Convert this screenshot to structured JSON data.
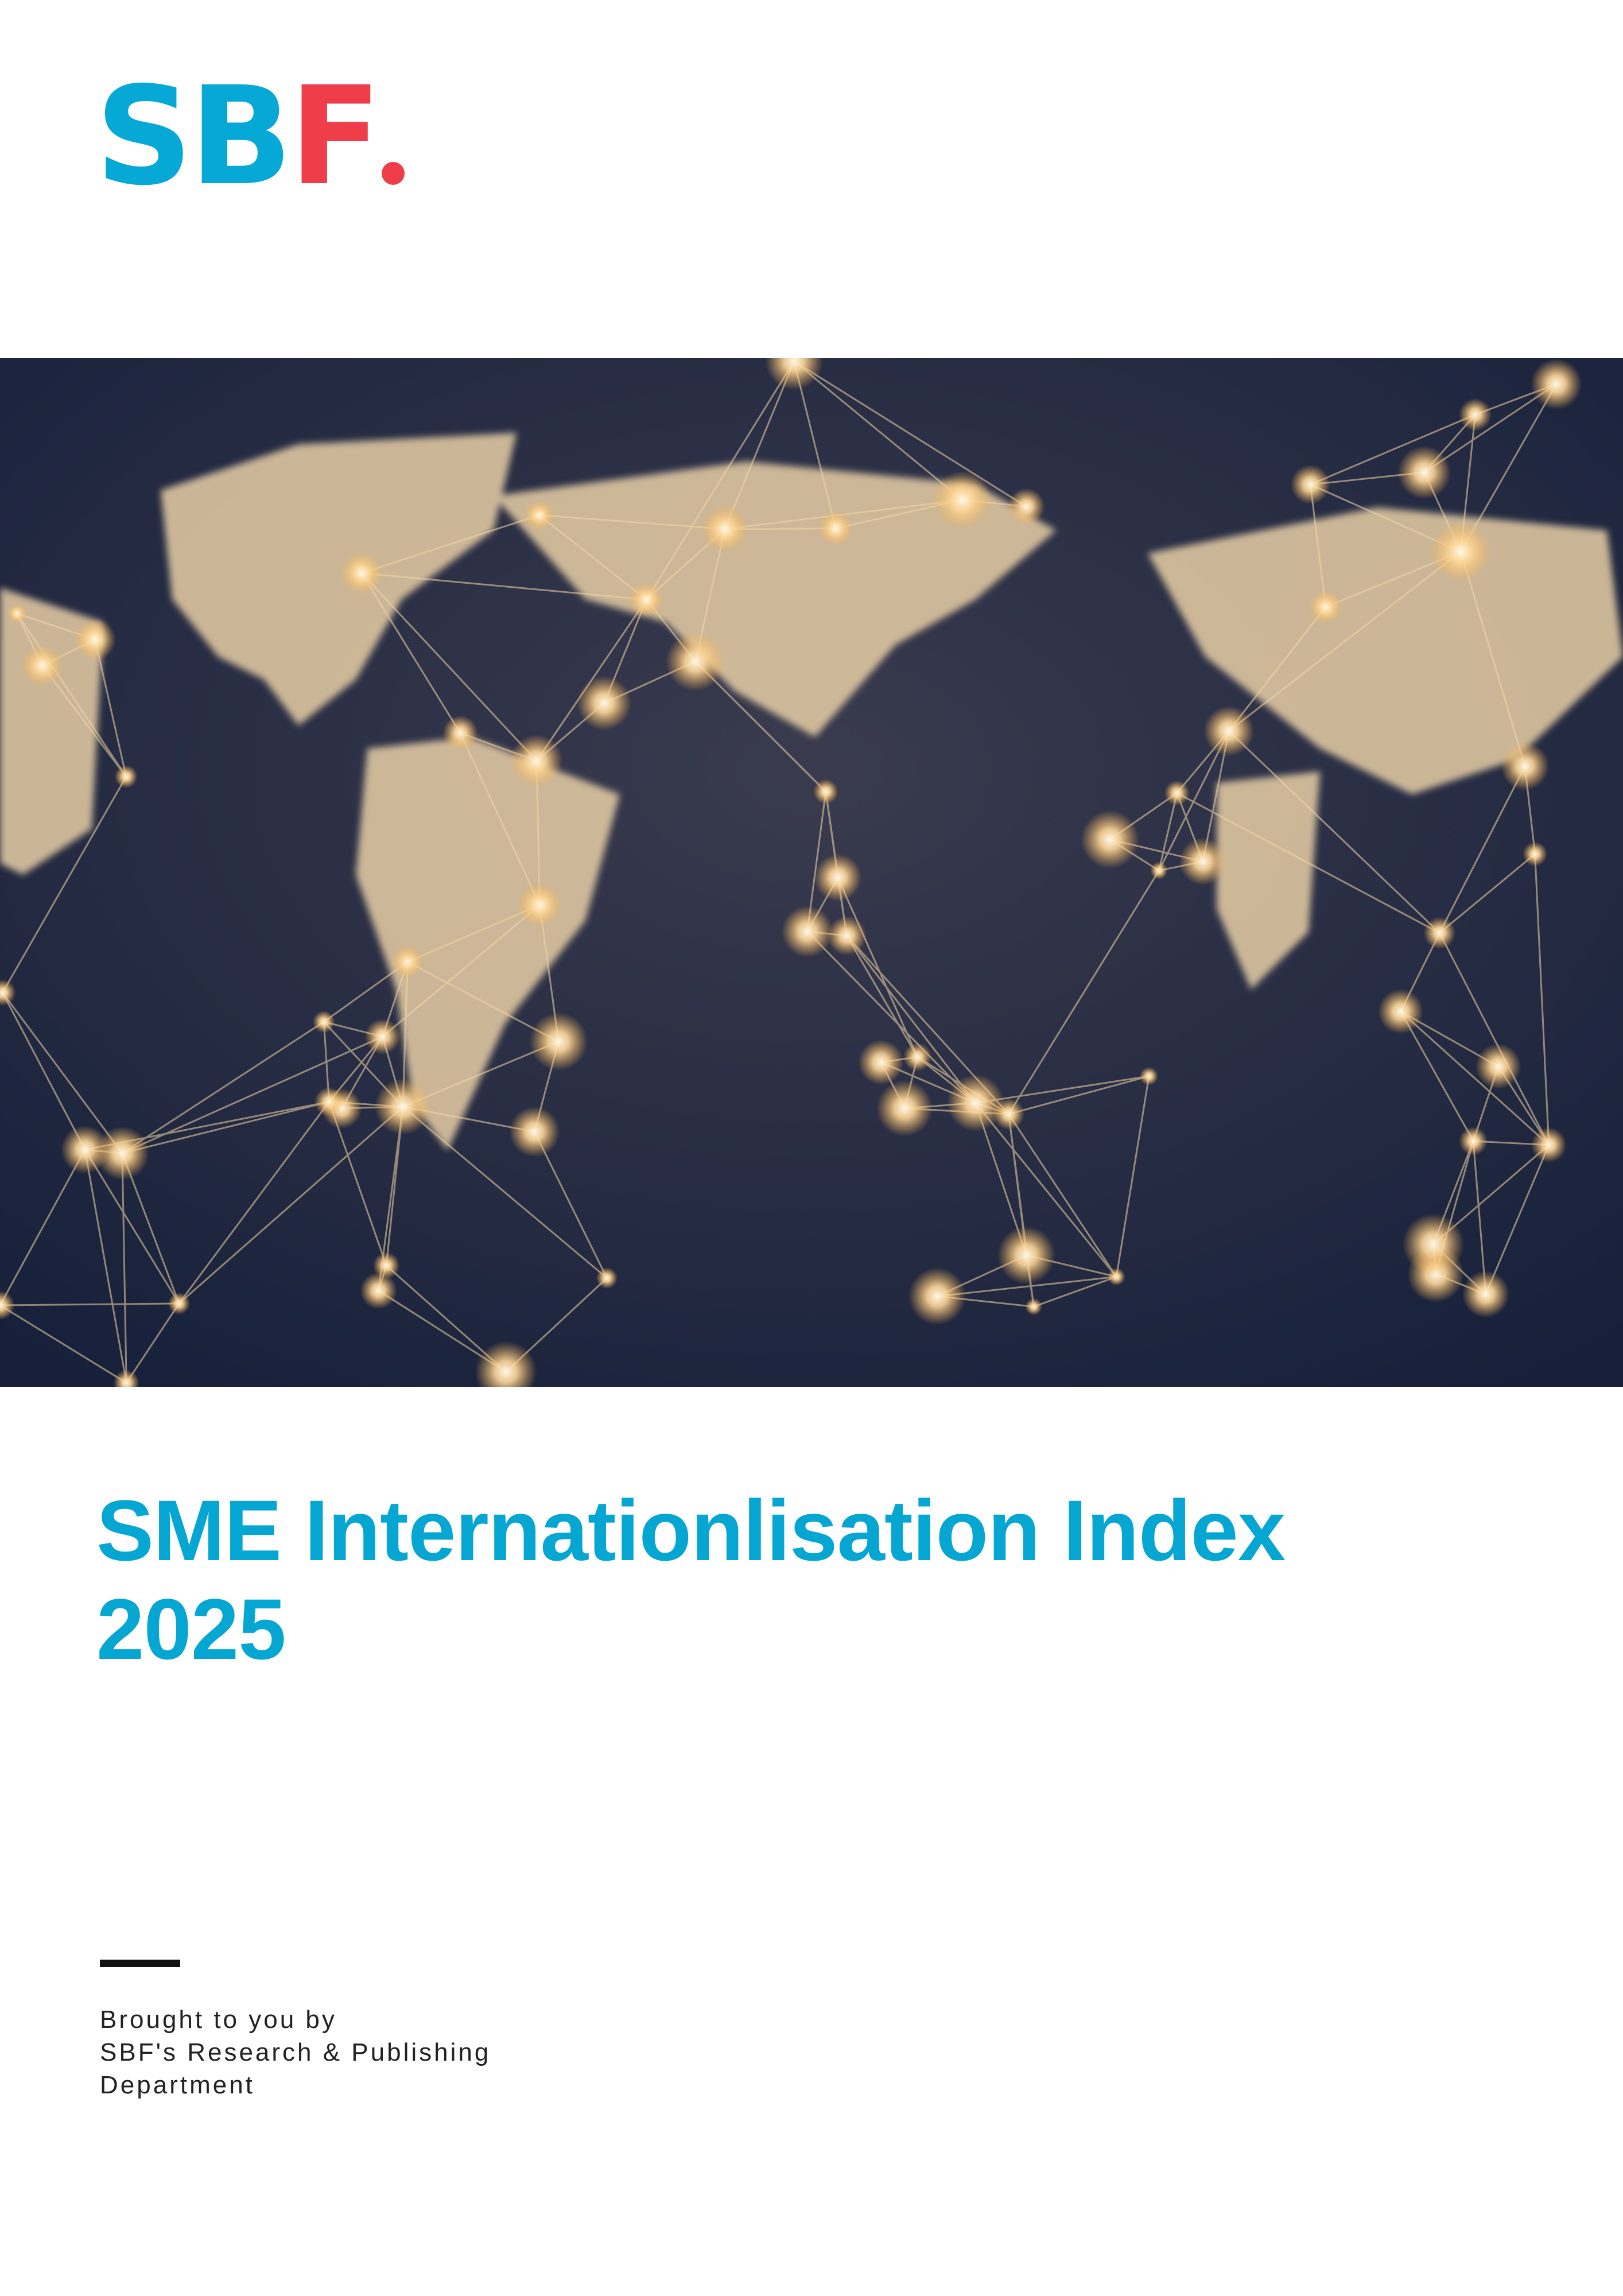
{
  "logo": [
    "SB",
    "F"
  ],
  "title": [
    "SME Internationlisation Index",
    "2025"
  ],
  "credit": [
    "Brought to you by",
    "SBF's Research & Publishing",
    "Department"
  ]
}
